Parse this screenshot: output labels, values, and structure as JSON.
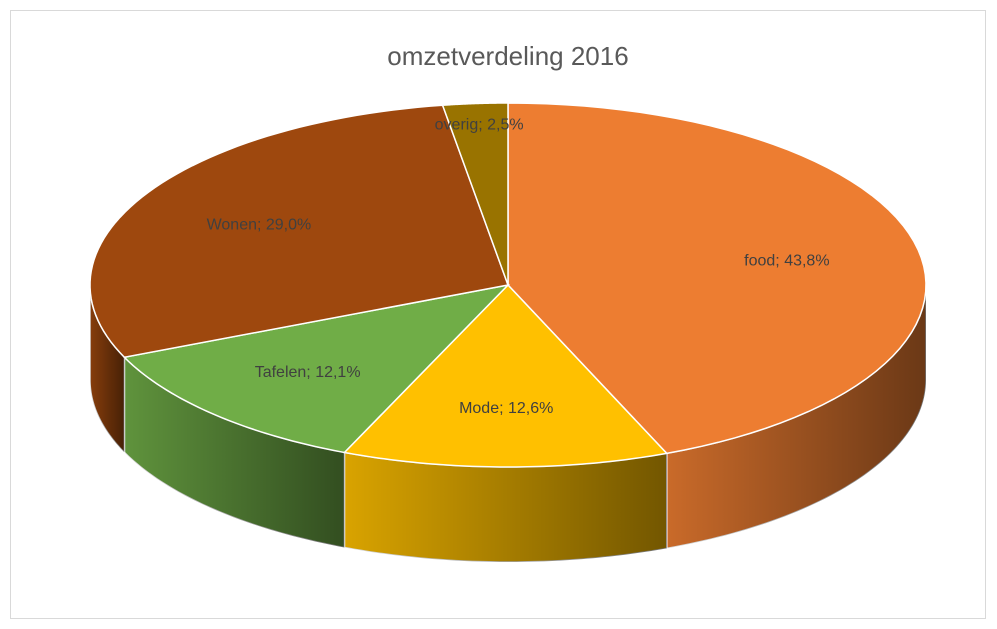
{
  "chart_data": {
    "type": "pie3d",
    "title": "omzetverdeling 2016",
    "values": [
      43.8,
      12.6,
      12.1,
      29.0,
      2.5
    ],
    "value_labels": [
      "food; 43,8%",
      "Mode; 12,6%",
      "Tafelen; 12,1%",
      "Wonen; 29,0%",
      "overig; 2,5%"
    ],
    "colors": [
      "#ed7d31",
      "#ffc000",
      "#70ad47",
      "#9e480e",
      "#997300"
    ]
  }
}
